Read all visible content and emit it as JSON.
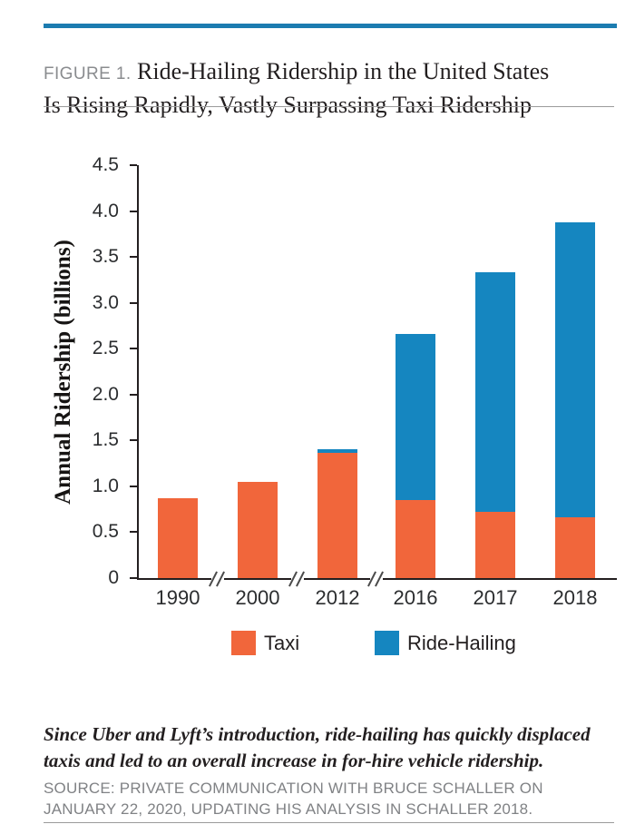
{
  "header": {
    "figure_label": "FIGURE 1.",
    "title_line1": "Ride-Hailing Ridership in the United States",
    "title_line2": "Is Rising Rapidly, Vastly Surpassing Taxi Ridership"
  },
  "footer": {
    "caption": "Since Uber and Lyft’s introduction, ride-hailing has quickly displaced taxis and led to an overall increase in for-hire vehicle ridership.",
    "source": "SOURCE: PRIVATE COMMUNICATION WITH BRUCE SCHALLER ON JANUARY 22, 2020, UPDATING HIS ANALYSIS IN SCHALLER 2018."
  },
  "colors": {
    "accent_rule": "#1B7CB0",
    "taxi": "#F1663B",
    "ride_hailing": "#1586C0",
    "axis": "#231F20"
  },
  "chart_data": {
    "type": "bar",
    "stacked": true,
    "categories": [
      "1990",
      "2000",
      "2012",
      "2016",
      "2017",
      "2018"
    ],
    "series": [
      {
        "name": "Taxi",
        "color": "#F1663B",
        "values": [
          0.87,
          1.05,
          1.36,
          0.85,
          0.72,
          0.66
        ]
      },
      {
        "name": "Ride-Hailing",
        "color": "#1586C0",
        "values": [
          0,
          0,
          0.04,
          1.81,
          2.61,
          3.22
        ]
      }
    ],
    "totals": [
      0.87,
      1.05,
      1.4,
      2.66,
      3.33,
      3.88
    ],
    "ylabel": "Annual Ridership (billions)",
    "ylim": [
      0,
      4.5
    ],
    "ytick_step": 0.5,
    "yticks": [
      "0",
      "0.5",
      "1.0",
      "1.5",
      "2.0",
      "2.5",
      "3.0",
      "3.5",
      "4.0",
      "4.5"
    ],
    "axis_break_between": [
      [
        "1990",
        "2000"
      ],
      [
        "2000",
        "2012"
      ],
      [
        "2012",
        "2016"
      ]
    ],
    "legend": [
      "Taxi",
      "Ride-Hailing"
    ],
    "legend_position": "bottom",
    "grid": false
  }
}
